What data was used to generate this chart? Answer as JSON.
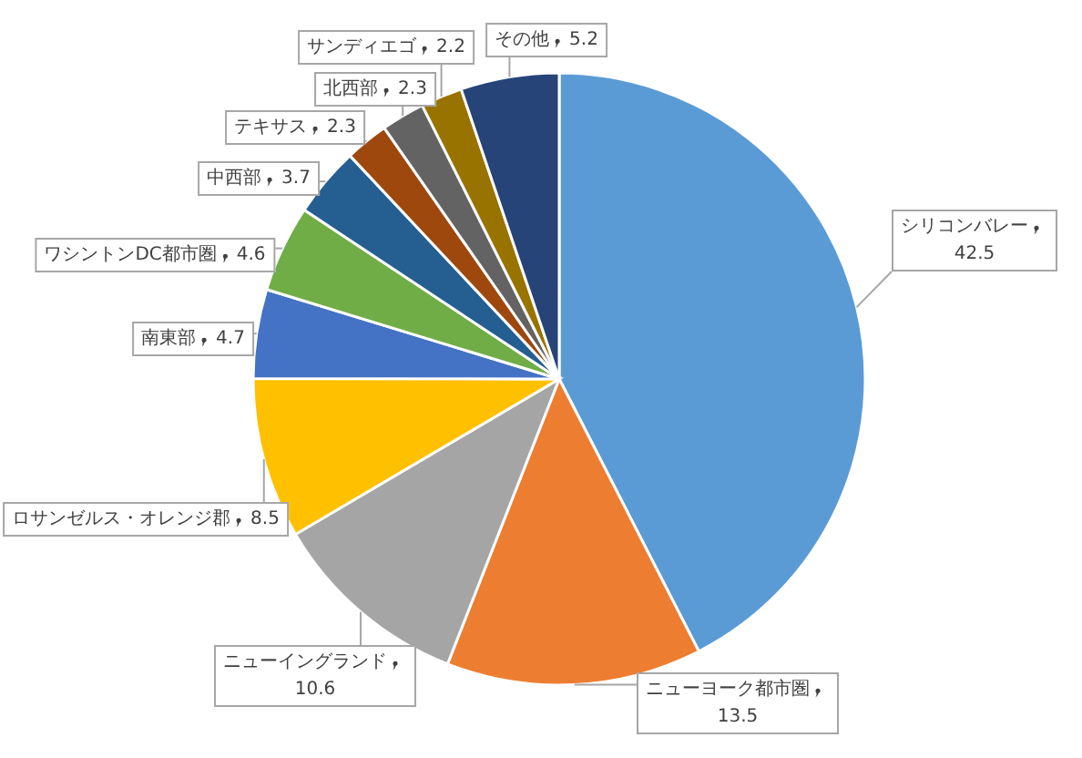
{
  "chart_data": {
    "type": "pie",
    "data_labels": true,
    "categories": [
      "シリコンバレー",
      "ニューヨーク都市圏",
      "ニューイングランド",
      "ロサンゼルス・オレンジ郡",
      "南東部",
      "ワシントンDC都市圏",
      "中西部",
      "テキサス",
      "北西部",
      "サンディエゴ",
      "その他"
    ],
    "values": [
      42.5,
      13.5,
      10.6,
      8.5,
      4.7,
      4.6,
      3.7,
      2.3,
      2.3,
      2.2,
      5.2
    ],
    "colors": [
      "#5b9bd5",
      "#ed7d31",
      "#a5a5a5",
      "#ffc000",
      "#4472c4",
      "#70ad47",
      "#255e91",
      "#9e480e",
      "#636363",
      "#997300",
      "#264478"
    ]
  }
}
